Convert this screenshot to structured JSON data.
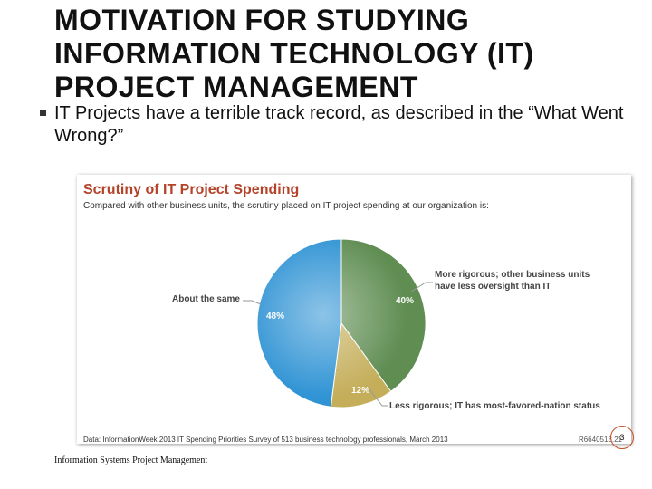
{
  "slide": {
    "title_lines": [
      "MOTIVATION FOR STUDYING",
      "INFORMATION TECHNOLOGY (IT)",
      "PROJECT MANAGEMENT"
    ],
    "bullet": "IT Projects have a terrible track record, as described in the “What Went Wrong?”",
    "footer": "Information Systems Project Management",
    "page_number": "3"
  },
  "chart_data": {
    "type": "pie",
    "title": "Scrutiny of IT Project Spending",
    "subtitle": "Compared with other business units, the scrutiny placed on IT project spending at our organization is:",
    "categories": [
      [
        "More rigorous; other business units",
        "have less oversight than IT"
      ],
      [
        "Less rigorous; IT has most-favored-nation status"
      ],
      [
        "About the same"
      ]
    ],
    "values": [
      40,
      12,
      48
    ],
    "value_labels": [
      "40%",
      "12%",
      "48%"
    ],
    "colors": [
      "#5f8d52",
      "#c4ae5a",
      "#2f93d4"
    ],
    "source": "Data: InformationWeek 2013 IT Spending Priorities Survey of 513 business technology professionals, March 2013",
    "code": "R6640513.21"
  }
}
